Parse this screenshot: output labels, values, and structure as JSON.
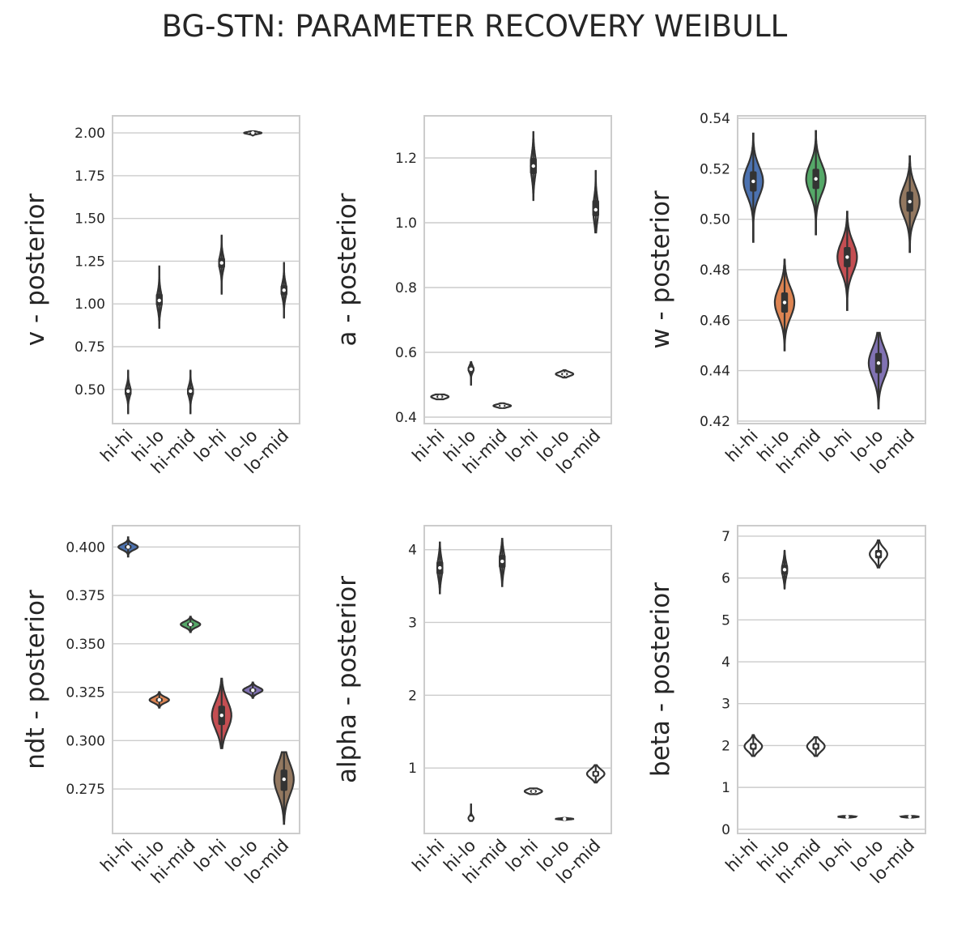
{
  "title": "BG-STN: PARAMETER RECOVERY WEIBULL",
  "colors": {
    "hi-hi": "#4c72b0",
    "hi-lo": "#dd8452",
    "hi-mid": "#55a868",
    "lo-hi": "#c44e52",
    "lo-lo": "#8172b3",
    "lo-mid": "#937860",
    "outline": "#333333",
    "grid": "#cccccc"
  },
  "chart_data": [
    {
      "type": "violin",
      "ylabel": "v - posterior",
      "categories": [
        "hi-hi",
        "hi-lo",
        "hi-mid",
        "lo-hi",
        "lo-lo",
        "lo-mid"
      ],
      "ylim": [
        0.3,
        2.1
      ],
      "yticks": [
        0.5,
        0.75,
        1.0,
        1.25,
        1.5,
        1.75,
        2.0
      ],
      "ytick_labels": [
        "0.50",
        "0.75",
        "1.00",
        "1.25",
        "1.50",
        "1.75",
        "2.00"
      ],
      "filled": false,
      "series": [
        {
          "category": "hi-hi",
          "median": 0.49,
          "q1": 0.465,
          "q3": 0.51,
          "min": 0.36,
          "max": 0.61
        },
        {
          "category": "hi-lo",
          "median": 1.02,
          "q1": 0.99,
          "q3": 1.06,
          "min": 0.86,
          "max": 1.22
        },
        {
          "category": "hi-mid",
          "median": 0.49,
          "q1": 0.465,
          "q3": 0.51,
          "min": 0.36,
          "max": 0.61
        },
        {
          "category": "lo-hi",
          "median": 1.24,
          "q1": 1.21,
          "q3": 1.27,
          "min": 1.06,
          "max": 1.4
        },
        {
          "category": "lo-lo",
          "median": 2.0,
          "q1": 1.995,
          "q3": 2.003,
          "min": 1.985,
          "max": 2.01
        },
        {
          "category": "lo-mid",
          "median": 1.08,
          "q1": 1.05,
          "q3": 1.11,
          "min": 0.92,
          "max": 1.24
        }
      ]
    },
    {
      "type": "violin",
      "ylabel": "a - posterior",
      "categories": [
        "hi-hi",
        "hi-lo",
        "hi-mid",
        "lo-hi",
        "lo-lo",
        "lo-mid"
      ],
      "ylim": [
        0.38,
        1.33
      ],
      "yticks": [
        0.4,
        0.6,
        0.8,
        1.0,
        1.2
      ],
      "ytick_labels": [
        "0.4",
        "0.6",
        "0.8",
        "1.0",
        "1.2"
      ],
      "filled": false,
      "series": [
        {
          "category": "hi-hi",
          "median": 0.463,
          "q1": 0.459,
          "q3": 0.467,
          "min": 0.455,
          "max": 0.47
        },
        {
          "category": "hi-lo",
          "median": 0.548,
          "q1": 0.541,
          "q3": 0.555,
          "min": 0.5,
          "max": 0.57
        },
        {
          "category": "hi-mid",
          "median": 0.435,
          "q1": 0.432,
          "q3": 0.438,
          "min": 0.428,
          "max": 0.443
        },
        {
          "category": "lo-hi",
          "median": 1.175,
          "q1": 1.15,
          "q3": 1.2,
          "min": 1.07,
          "max": 1.28
        },
        {
          "category": "lo-lo",
          "median": 0.533,
          "q1": 0.529,
          "q3": 0.537,
          "min": 0.522,
          "max": 0.545
        },
        {
          "category": "lo-mid",
          "median": 1.04,
          "q1": 1.02,
          "q3": 1.07,
          "min": 0.97,
          "max": 1.16
        }
      ]
    },
    {
      "type": "violin",
      "ylabel": "w - posterior",
      "categories": [
        "hi-hi",
        "hi-lo",
        "hi-mid",
        "lo-hi",
        "lo-lo",
        "lo-mid"
      ],
      "ylim": [
        0.419,
        0.541
      ],
      "yticks": [
        0.42,
        0.44,
        0.46,
        0.48,
        0.5,
        0.52,
        0.54
      ],
      "ytick_labels": [
        "0.42",
        "0.44",
        "0.46",
        "0.48",
        "0.50",
        "0.52",
        "0.54"
      ],
      "filled": true,
      "series": [
        {
          "category": "hi-hi",
          "median": 0.515,
          "q1": 0.511,
          "q3": 0.519,
          "min": 0.491,
          "max": 0.534
        },
        {
          "category": "hi-lo",
          "median": 0.467,
          "q1": 0.463,
          "q3": 0.471,
          "min": 0.448,
          "max": 0.484
        },
        {
          "category": "hi-mid",
          "median": 0.516,
          "q1": 0.512,
          "q3": 0.52,
          "min": 0.494,
          "max": 0.535
        },
        {
          "category": "lo-hi",
          "median": 0.485,
          "q1": 0.481,
          "q3": 0.489,
          "min": 0.464,
          "max": 0.503
        },
        {
          "category": "lo-lo",
          "median": 0.443,
          "q1": 0.439,
          "q3": 0.447,
          "min": 0.425,
          "max": 0.455
        },
        {
          "category": "lo-mid",
          "median": 0.507,
          "q1": 0.503,
          "q3": 0.511,
          "min": 0.487,
          "max": 0.525
        }
      ]
    },
    {
      "type": "violin",
      "ylabel": "ndt - posterior",
      "categories": [
        "hi-hi",
        "hi-lo",
        "hi-mid",
        "lo-hi",
        "lo-lo",
        "lo-mid"
      ],
      "ylim": [
        0.252,
        0.411
      ],
      "yticks": [
        0.275,
        0.3,
        0.325,
        0.35,
        0.375,
        0.4
      ],
      "ytick_labels": [
        "0.275",
        "0.300",
        "0.325",
        "0.350",
        "0.375",
        "0.400"
      ],
      "filled": true,
      "series": [
        {
          "category": "hi-hi",
          "median": 0.4,
          "q1": 0.399,
          "q3": 0.401,
          "min": 0.395,
          "max": 0.405
        },
        {
          "category": "hi-lo",
          "median": 0.321,
          "q1": 0.32,
          "q3": 0.322,
          "min": 0.317,
          "max": 0.325
        },
        {
          "category": "hi-mid",
          "median": 0.36,
          "q1": 0.359,
          "q3": 0.361,
          "min": 0.356,
          "max": 0.364
        },
        {
          "category": "lo-hi",
          "median": 0.313,
          "q1": 0.308,
          "q3": 0.318,
          "min": 0.296,
          "max": 0.332
        },
        {
          "category": "lo-lo",
          "median": 0.326,
          "q1": 0.325,
          "q3": 0.327,
          "min": 0.322,
          "max": 0.33
        },
        {
          "category": "lo-mid",
          "median": 0.28,
          "q1": 0.274,
          "q3": 0.285,
          "min": 0.257,
          "max": 0.294
        }
      ]
    },
    {
      "type": "violin",
      "ylabel": "alpha - posterior",
      "categories": [
        "hi-hi",
        "hi-lo",
        "hi-mid",
        "lo-hi",
        "lo-lo",
        "lo-mid"
      ],
      "ylim": [
        0.1,
        4.33
      ],
      "yticks": [
        1,
        2,
        3,
        4
      ],
      "ytick_labels": [
        "1",
        "2",
        "3",
        "4"
      ],
      "filled": false,
      "series": [
        {
          "category": "hi-hi",
          "median": 3.75,
          "q1": 3.66,
          "q3": 3.84,
          "min": 3.4,
          "max": 4.1
        },
        {
          "category": "hi-lo",
          "median": 0.31,
          "q1": 0.29,
          "q3": 0.33,
          "min": 0.27,
          "max": 0.5
        },
        {
          "category": "hi-mid",
          "median": 3.84,
          "q1": 3.75,
          "q3": 3.93,
          "min": 3.5,
          "max": 4.15
        },
        {
          "category": "lo-hi",
          "median": 0.68,
          "q1": 0.66,
          "q3": 0.7,
          "min": 0.64,
          "max": 0.72
        },
        {
          "category": "lo-lo",
          "median": 0.3,
          "q1": 0.295,
          "q3": 0.305,
          "min": 0.285,
          "max": 0.315
        },
        {
          "category": "lo-mid",
          "median": 0.92,
          "q1": 0.88,
          "q3": 0.96,
          "min": 0.8,
          "max": 1.04
        }
      ]
    },
    {
      "type": "violin",
      "ylabel": "beta - posterior",
      "categories": [
        "hi-hi",
        "hi-lo",
        "hi-mid",
        "lo-hi",
        "lo-lo",
        "lo-mid"
      ],
      "ylim": [
        -0.1,
        7.25
      ],
      "yticks": [
        0,
        1,
        2,
        3,
        4,
        5,
        6,
        7
      ],
      "ytick_labels": [
        "0",
        "1",
        "2",
        "3",
        "4",
        "5",
        "6",
        "7"
      ],
      "filled": false,
      "series": [
        {
          "category": "hi-hi",
          "median": 1.98,
          "q1": 1.9,
          "q3": 2.06,
          "min": 1.75,
          "max": 2.25
        },
        {
          "category": "hi-lo",
          "median": 6.2,
          "q1": 6.08,
          "q3": 6.32,
          "min": 5.75,
          "max": 6.65
        },
        {
          "category": "hi-mid",
          "median": 1.98,
          "q1": 1.9,
          "q3": 2.06,
          "min": 1.75,
          "max": 2.2
        },
        {
          "category": "lo-hi",
          "median": 0.3,
          "q1": 0.29,
          "q3": 0.31,
          "min": 0.28,
          "max": 0.32
        },
        {
          "category": "lo-lo",
          "median": 6.57,
          "q1": 6.47,
          "q3": 6.67,
          "min": 6.25,
          "max": 6.9
        },
        {
          "category": "lo-mid",
          "median": 0.3,
          "q1": 0.29,
          "q3": 0.31,
          "min": 0.28,
          "max": 0.32
        }
      ]
    }
  ]
}
